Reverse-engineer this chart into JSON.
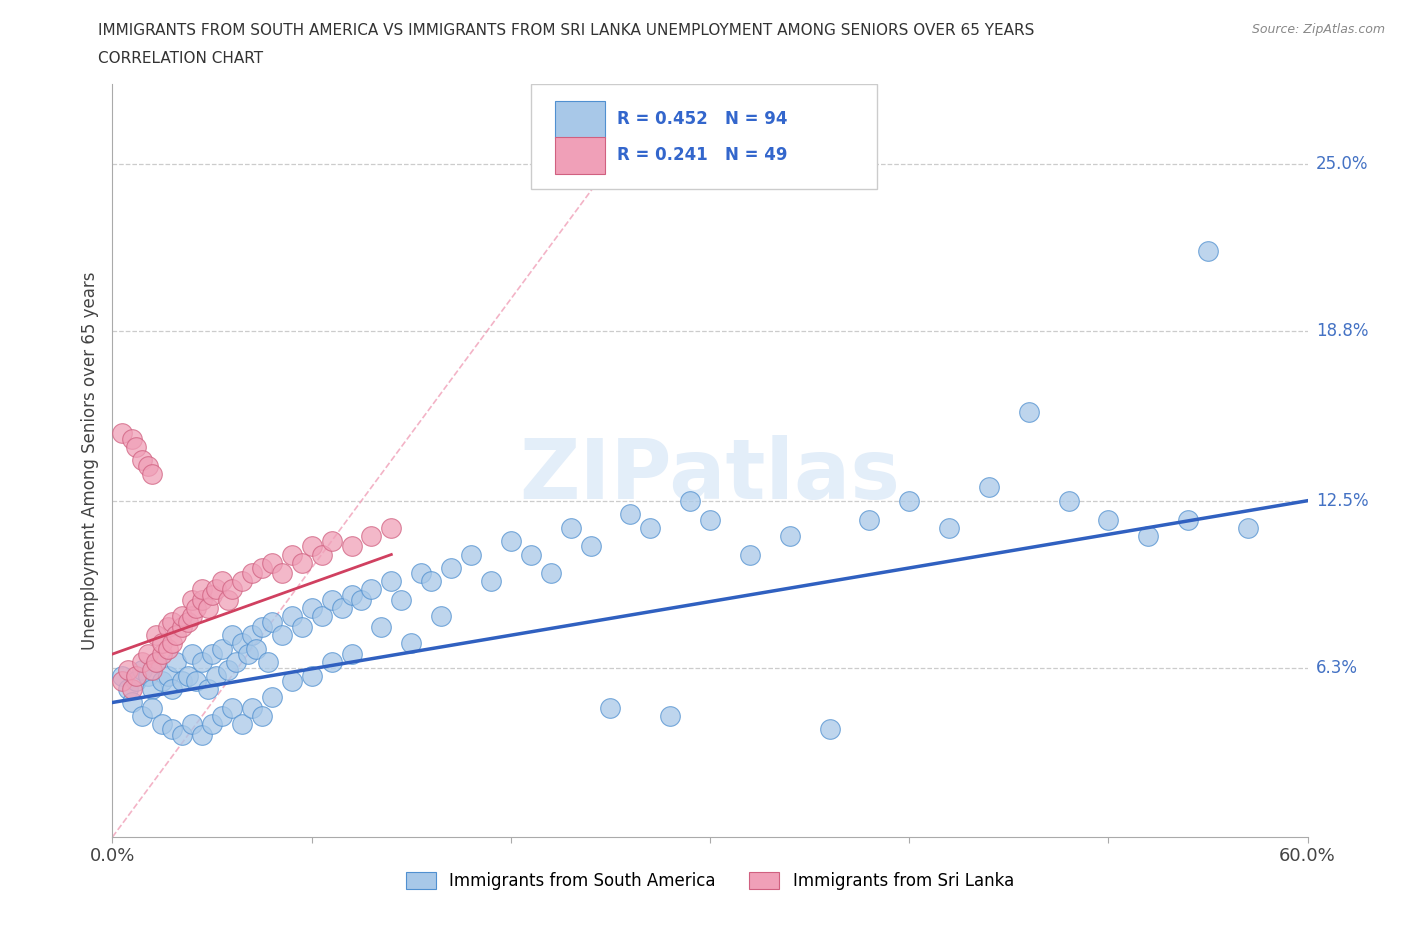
{
  "title_line1": "IMMIGRANTS FROM SOUTH AMERICA VS IMMIGRANTS FROM SRI LANKA UNEMPLOYMENT AMONG SENIORS OVER 65 YEARS",
  "title_line2": "CORRELATION CHART",
  "source": "Source: ZipAtlas.com",
  "ylabel": "Unemployment Among Seniors over 65 years",
  "watermark": "ZIPatlas",
  "xlim": [
    0.0,
    0.6
  ],
  "ylim": [
    0.0,
    0.28
  ],
  "xtick_positions": [
    0.0,
    0.1,
    0.2,
    0.3,
    0.4,
    0.5,
    0.6
  ],
  "xticklabels": [
    "0.0%",
    "",
    "",
    "",
    "",
    "",
    "60.0%"
  ],
  "ytick_positions": [
    0.063,
    0.125,
    0.188,
    0.25
  ],
  "ytick_labels": [
    "6.3%",
    "12.5%",
    "18.8%",
    "25.0%"
  ],
  "blue_R": 0.452,
  "blue_N": 94,
  "pink_R": 0.241,
  "pink_N": 49,
  "blue_color": "#a8c8e8",
  "pink_color": "#f0a0b8",
  "blue_line_color": "#3060c0",
  "pink_line_color": "#d04060",
  "ref_line_color": "#f0a0b8",
  "legend_label_blue": "Immigrants from South America",
  "legend_label_pink": "Immigrants from Sri Lanka",
  "blue_scatter_x": [
    0.005,
    0.008,
    0.01,
    0.012,
    0.015,
    0.015,
    0.018,
    0.02,
    0.02,
    0.022,
    0.025,
    0.025,
    0.028,
    0.03,
    0.03,
    0.032,
    0.035,
    0.035,
    0.038,
    0.04,
    0.04,
    0.042,
    0.045,
    0.045,
    0.048,
    0.05,
    0.05,
    0.052,
    0.055,
    0.055,
    0.058,
    0.06,
    0.06,
    0.062,
    0.065,
    0.065,
    0.068,
    0.07,
    0.07,
    0.072,
    0.075,
    0.075,
    0.078,
    0.08,
    0.08,
    0.085,
    0.09,
    0.09,
    0.095,
    0.1,
    0.1,
    0.105,
    0.11,
    0.11,
    0.115,
    0.12,
    0.12,
    0.125,
    0.13,
    0.135,
    0.14,
    0.145,
    0.15,
    0.155,
    0.16,
    0.165,
    0.17,
    0.18,
    0.19,
    0.2,
    0.21,
    0.22,
    0.23,
    0.24,
    0.25,
    0.26,
    0.27,
    0.28,
    0.29,
    0.3,
    0.32,
    0.34,
    0.36,
    0.38,
    0.4,
    0.42,
    0.44,
    0.46,
    0.48,
    0.5,
    0.52,
    0.54,
    0.55,
    0.57
  ],
  "blue_scatter_y": [
    0.06,
    0.055,
    0.05,
    0.058,
    0.062,
    0.045,
    0.06,
    0.055,
    0.048,
    0.065,
    0.058,
    0.042,
    0.06,
    0.055,
    0.04,
    0.065,
    0.058,
    0.038,
    0.06,
    0.068,
    0.042,
    0.058,
    0.065,
    0.038,
    0.055,
    0.068,
    0.042,
    0.06,
    0.07,
    0.045,
    0.062,
    0.075,
    0.048,
    0.065,
    0.072,
    0.042,
    0.068,
    0.075,
    0.048,
    0.07,
    0.078,
    0.045,
    0.065,
    0.08,
    0.052,
    0.075,
    0.082,
    0.058,
    0.078,
    0.085,
    0.06,
    0.082,
    0.088,
    0.065,
    0.085,
    0.09,
    0.068,
    0.088,
    0.092,
    0.078,
    0.095,
    0.088,
    0.072,
    0.098,
    0.095,
    0.082,
    0.1,
    0.105,
    0.095,
    0.11,
    0.105,
    0.098,
    0.115,
    0.108,
    0.048,
    0.12,
    0.115,
    0.045,
    0.125,
    0.118,
    0.105,
    0.112,
    0.04,
    0.118,
    0.125,
    0.115,
    0.13,
    0.158,
    0.125,
    0.118,
    0.112,
    0.118,
    0.218,
    0.115
  ],
  "pink_scatter_x": [
    0.005,
    0.005,
    0.008,
    0.01,
    0.01,
    0.012,
    0.012,
    0.015,
    0.015,
    0.018,
    0.018,
    0.02,
    0.02,
    0.022,
    0.022,
    0.025,
    0.025,
    0.028,
    0.028,
    0.03,
    0.03,
    0.032,
    0.035,
    0.035,
    0.038,
    0.04,
    0.04,
    0.042,
    0.045,
    0.045,
    0.048,
    0.05,
    0.052,
    0.055,
    0.058,
    0.06,
    0.065,
    0.07,
    0.075,
    0.08,
    0.085,
    0.09,
    0.095,
    0.1,
    0.105,
    0.11,
    0.12,
    0.13,
    0.14
  ],
  "pink_scatter_y": [
    0.058,
    0.15,
    0.062,
    0.055,
    0.148,
    0.06,
    0.145,
    0.065,
    0.14,
    0.068,
    0.138,
    0.062,
    0.135,
    0.065,
    0.075,
    0.068,
    0.072,
    0.07,
    0.078,
    0.072,
    0.08,
    0.075,
    0.078,
    0.082,
    0.08,
    0.082,
    0.088,
    0.085,
    0.088,
    0.092,
    0.085,
    0.09,
    0.092,
    0.095,
    0.088,
    0.092,
    0.095,
    0.098,
    0.1,
    0.102,
    0.098,
    0.105,
    0.102,
    0.108,
    0.105,
    0.11,
    0.108,
    0.112,
    0.115
  ],
  "blue_trend_x": [
    0.0,
    0.6
  ],
  "blue_trend_y": [
    0.05,
    0.125
  ],
  "pink_trend_x": [
    0.0,
    0.14
  ],
  "pink_trend_y": [
    0.068,
    0.105
  ],
  "ref_line_x": [
    0.0,
    0.28
  ],
  "ref_line_y": [
    0.0,
    0.28
  ]
}
